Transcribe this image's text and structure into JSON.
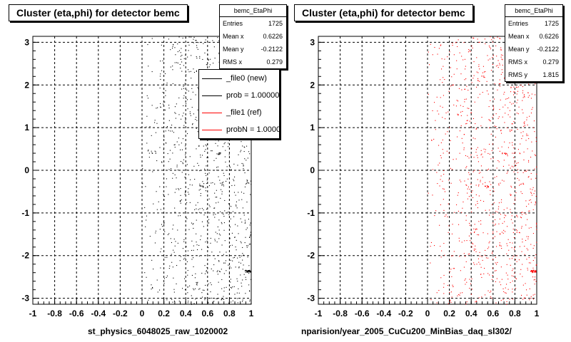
{
  "chart_data": [
    {
      "type": "scatter",
      "title": "Cluster (eta,phi) for detector bemc",
      "xlabel": "",
      "ylabel": "",
      "xlim": [
        -1,
        1
      ],
      "ylim": [
        -3.14,
        3.14
      ],
      "grid": true,
      "x_ticks": [
        "-1",
        "-0.8",
        "-0.6",
        "-0.4",
        "-0.2",
        "0",
        "0.2",
        "0.4",
        "0.6",
        "0.8",
        "1"
      ],
      "y_ticks": [
        "-3",
        "-2",
        "-1",
        "0",
        "1",
        "2",
        "3"
      ],
      "series": [
        {
          "color": "#000000"
        }
      ],
      "stats": {
        "name": "bemc_EtaPhi",
        "rows": [
          {
            "label": "Entries",
            "value": "1725"
          },
          {
            "label": "Mean x",
            "value": "0.6226"
          },
          {
            "label": "Mean y",
            "value": "-0.2122"
          },
          {
            "label": "RMS x",
            "value": "0.279"
          }
        ]
      },
      "legend": [
        {
          "label": "_file0 (new)",
          "color": "#000000"
        },
        {
          "label": "prob = 1.000000",
          "color": "#000000"
        },
        {
          "label": "_file1 (ref)",
          "color": "#ff0000"
        },
        {
          "label": "probN = 1.000000",
          "color": "#ff0000"
        }
      ],
      "legend_placement": "top-right",
      "footer": "st_physics_6048025_raw_1020002"
    },
    {
      "type": "scatter",
      "title": "Cluster (eta,phi) for detector bemc",
      "xlabel": "",
      "ylabel": "",
      "xlim": [
        -1,
        1
      ],
      "ylim": [
        -3.14,
        3.14
      ],
      "grid": true,
      "x_ticks": [
        "-1",
        "-0.8",
        "-0.6",
        "-0.4",
        "-0.2",
        "0",
        "0.2",
        "0.4",
        "0.6",
        "0.8",
        "1"
      ],
      "y_ticks": [
        "-3",
        "-2",
        "-1",
        "0",
        "1",
        "2",
        "3"
      ],
      "series": [
        {
          "color": "#ff0000"
        }
      ],
      "stats": {
        "name": "bemc_EtaPhi",
        "rows": [
          {
            "label": "Entries",
            "value": "1725"
          },
          {
            "label": "Mean x",
            "value": "0.6226"
          },
          {
            "label": "Mean y",
            "value": "-0.2122"
          },
          {
            "label": "RMS x",
            "value": "0.279"
          },
          {
            "label": "RMS y",
            "value": "1.815"
          }
        ]
      },
      "footer": "nparision/year_2005_CuCu200_MinBias_daq_sl302/"
    }
  ]
}
